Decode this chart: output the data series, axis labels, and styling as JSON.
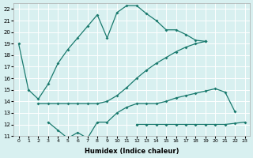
{
  "xlabel": "Humidex (Indice chaleur)",
  "x": [
    0,
    1,
    2,
    3,
    4,
    5,
    6,
    7,
    8,
    9,
    10,
    11,
    12,
    13,
    14,
    15,
    16,
    17,
    18,
    19,
    20,
    21,
    22,
    23
  ],
  "curve1": [
    19,
    15,
    14.2,
    15.5,
    17.3,
    18.5,
    19.5,
    20.5,
    21.5,
    19.5,
    21.7,
    22.3,
    22.3,
    21.6,
    21.0,
    20.2,
    20.2,
    19.8,
    19.3,
    19.2,
    null,
    null,
    null,
    null
  ],
  "curve2": [
    null,
    null,
    13.8,
    13.8,
    13.8,
    13.8,
    13.8,
    13.8,
    13.8,
    14.0,
    14.5,
    15.2,
    16.0,
    16.7,
    17.3,
    17.8,
    18.3,
    18.7,
    19.0,
    19.2,
    null,
    null,
    null,
    null
  ],
  "curve3": [
    null,
    null,
    null,
    12.2,
    11.5,
    10.8,
    11.3,
    10.8,
    12.2,
    12.2,
    13.0,
    13.5,
    13.8,
    13.8,
    13.8,
    14.0,
    14.3,
    14.5,
    14.7,
    14.9,
    15.1,
    14.8,
    13.1,
    null
  ],
  "curve4": [
    null,
    null,
    null,
    null,
    null,
    null,
    null,
    null,
    null,
    null,
    null,
    null,
    12.0,
    12.0,
    12.0,
    12.0,
    12.0,
    12.0,
    12.0,
    12.0,
    12.0,
    12.0,
    12.1,
    12.2
  ],
  "ylim": [
    11,
    22.5
  ],
  "yticks": [
    11,
    12,
    13,
    14,
    15,
    16,
    17,
    18,
    19,
    20,
    21,
    22
  ],
  "xticks": [
    0,
    1,
    2,
    3,
    4,
    5,
    6,
    7,
    8,
    9,
    10,
    11,
    12,
    13,
    14,
    15,
    16,
    17,
    18,
    19,
    20,
    21,
    22,
    23
  ],
  "color": "#1a7a6e",
  "bg_color": "#d8f0f0",
  "grid_color": "#ffffff"
}
